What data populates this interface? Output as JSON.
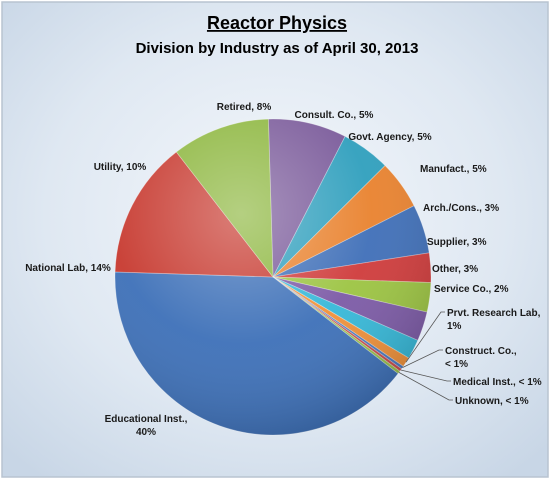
{
  "chart_data": {
    "type": "pie",
    "title": "Reactor Physics",
    "subtitle": "Division by Industry as of April 30, 2013",
    "slices": [
      {
        "name": "Retired",
        "value": 8,
        "label_lines": [
          "Retired, 8%"
        ],
        "color": "#7a5a9a"
      },
      {
        "name": "Consult. Co.",
        "value": 5,
        "label_lines": [
          "Consult. Co., 5%"
        ],
        "color": "#2f9fbd"
      },
      {
        "name": "Govt. Agency",
        "value": 5,
        "label_lines": [
          "Govt. Agency, 5%"
        ],
        "color": "#e9822e"
      },
      {
        "name": "Manufact.",
        "value": 5,
        "label_lines": [
          "Manufact., 5%"
        ],
        "color": "#3f6fb8"
      },
      {
        "name": "Arch./Cons.",
        "value": 3,
        "label_lines": [
          "Arch./Cons., 3%"
        ],
        "color": "#cf3b3b"
      },
      {
        "name": "Supplier",
        "value": 3,
        "label_lines": [
          "Supplier, 3%"
        ],
        "color": "#9cc442"
      },
      {
        "name": "Other",
        "value": 3,
        "label_lines": [
          "Other, 3%"
        ],
        "color": "#7c5aa6"
      },
      {
        "name": "Service Co.",
        "value": 2,
        "label_lines": [
          "Service Co., 2%"
        ],
        "color": "#36b8d8"
      },
      {
        "name": "Prvt. Research Lab",
        "value": 1,
        "label_lines": [
          "Prvt. Research Lab,",
          "1%"
        ],
        "color": "#f0913a"
      },
      {
        "name": "Construct. Co.",
        "value": 0.3,
        "label_lines": [
          "Construct. Co.,",
          "< 1%"
        ],
        "color": "#4a78c0"
      },
      {
        "name": "Medical Inst.",
        "value": 0.3,
        "label_lines": [
          "Medical Inst., < 1%"
        ],
        "color": "#c94a4a"
      },
      {
        "name": "Unknown",
        "value": 0.3,
        "label_lines": [
          "Unknown, < 1%"
        ],
        "color": "#98bf4b"
      },
      {
        "name": "Educational Inst.",
        "value": 40,
        "label_lines": [
          "Educational Inst.,",
          "40%"
        ],
        "color": "#3d70b8"
      },
      {
        "name": "National Lab",
        "value": 14,
        "label_lines": [
          "National Lab, 14%"
        ],
        "color": "#c7392f"
      },
      {
        "name": "Utility",
        "value": 10,
        "label_lines": [
          "Utility, 10%"
        ],
        "color": "#8cb63d"
      }
    ],
    "background_color": "#d4e0ec",
    "frame_color": "#b8c4d0"
  }
}
